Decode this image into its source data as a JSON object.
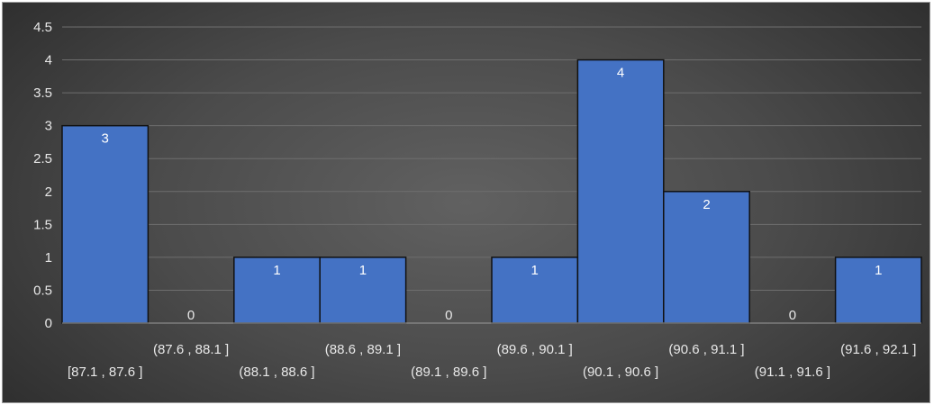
{
  "chart_data": {
    "type": "bar",
    "title": "",
    "xlabel": "",
    "ylabel": "",
    "ylim": [
      0,
      4.5
    ],
    "y_ticks": [
      "0",
      "0.5",
      "1",
      "1.5",
      "2",
      "2.5",
      "3",
      "3.5",
      "4",
      "4.5"
    ],
    "grid": true,
    "legend": "none",
    "categories": [
      "[87.1 , 87.6 ]",
      "(87.6 , 88.1 ]",
      "(88.1 , 88.6 ]",
      "(88.6 , 89.1 ]",
      "(89.1 , 89.6 ]",
      "(89.6 , 90.1 ]",
      "(90.1 , 90.6 ]",
      "(90.6 , 91.1 ]",
      "(91.1 , 91.6 ]",
      "(91.6 , 92.1 ]"
    ],
    "values": [
      3,
      0,
      1,
      1,
      0,
      1,
      4,
      2,
      0,
      1
    ],
    "data_labels": [
      "3",
      "0",
      "1",
      "1",
      "0",
      "1",
      "4",
      "2",
      "0",
      "1"
    ],
    "colors": {
      "bar_fill": "#4472c4",
      "bar_edge": "#111111",
      "gridline": "#6e6e6e",
      "text": "#e8e8e8"
    }
  }
}
